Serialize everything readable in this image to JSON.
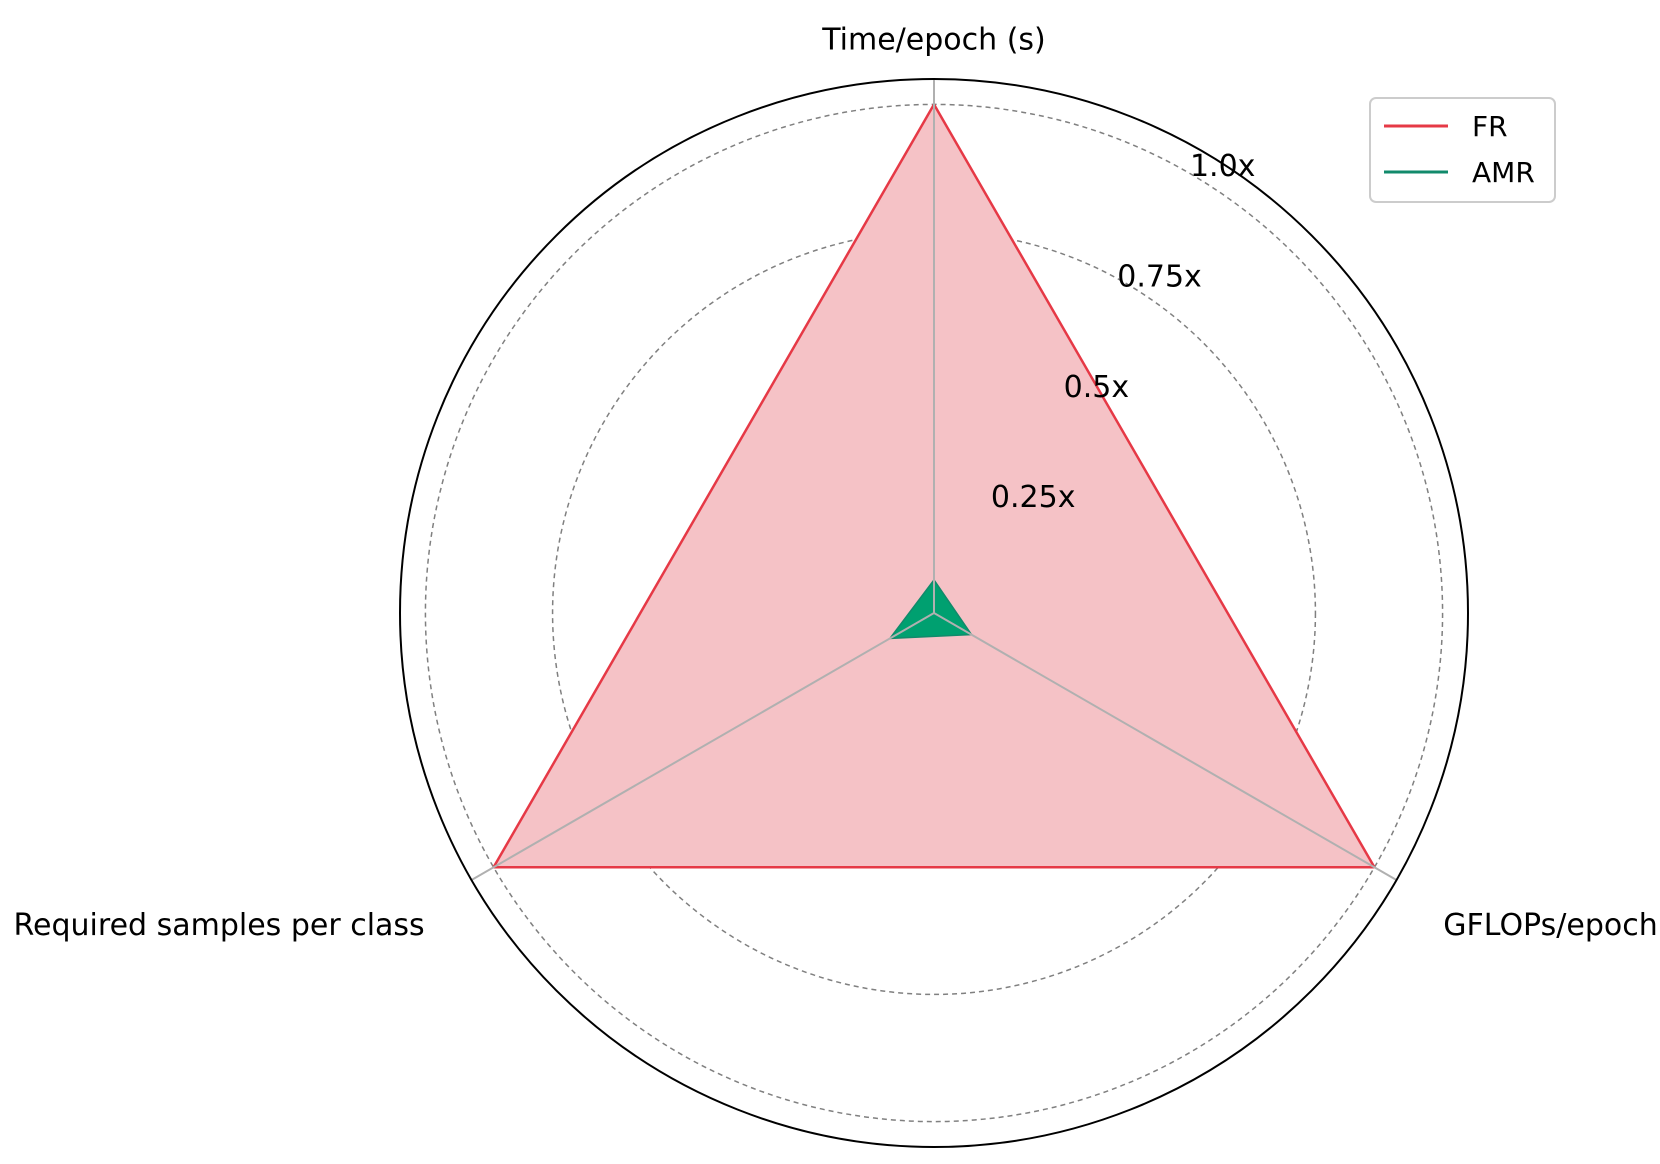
{
  "chart_data": {
    "type": "radar",
    "axes": [
      "Time/epoch (s)",
      "GFLOPs/epoch",
      "Required samples per class"
    ],
    "rticks": [
      0.25,
      0.5,
      0.75,
      1.0
    ],
    "rtick_labels": [
      "0.25x",
      "0.5x",
      "0.75x",
      "1.0x"
    ],
    "rmax": 1.05,
    "grid": true,
    "legend_position": "top-right",
    "series": [
      {
        "name": "FR",
        "values": [
          1.0,
          1.0,
          1.0
        ],
        "color": "#e63946",
        "fill": "#f5c2c6"
      },
      {
        "name": "AMR",
        "values": [
          0.065,
          0.085,
          0.1
        ],
        "color": "#118a6b",
        "fill": "#00a070"
      }
    ]
  }
}
